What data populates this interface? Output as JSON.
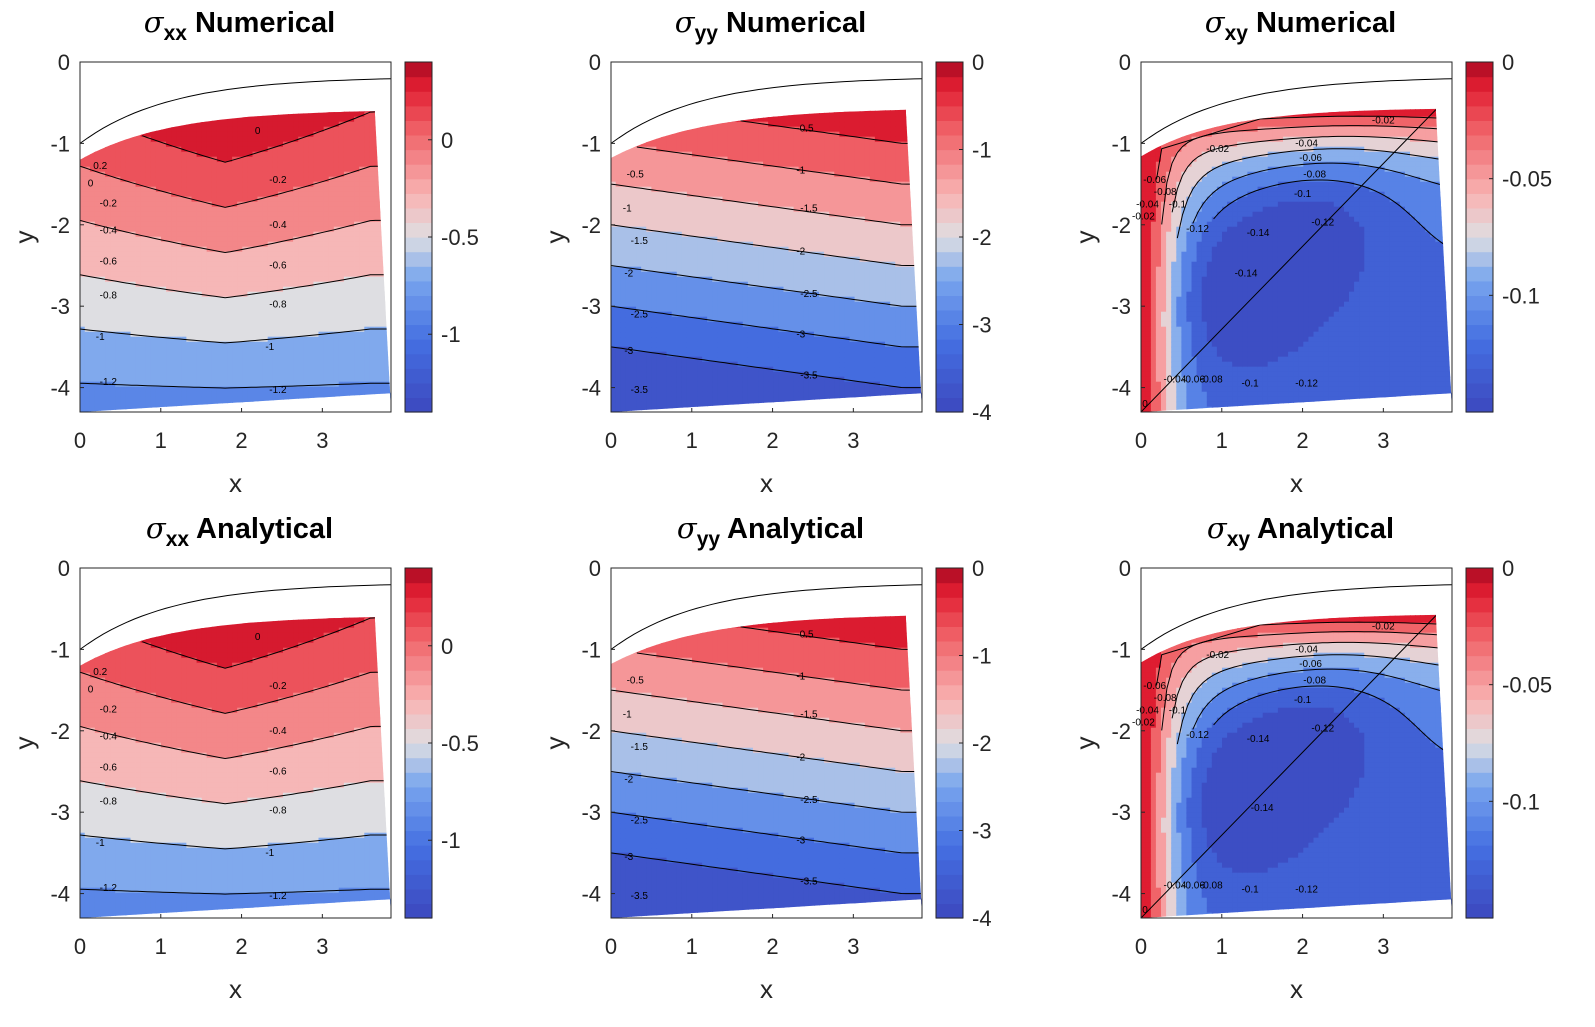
{
  "figure": {
    "type": "contour-grid",
    "rows": 2,
    "cols": 3
  },
  "chart_data": [
    {
      "type": "contour",
      "component": "xx",
      "method": "Numerical",
      "title": "σxx Numerical",
      "title_symbol": "σ",
      "title_sub": "xx",
      "title_suffix": " Numerical",
      "xlabel": "x",
      "ylabel": "y",
      "xlim": [
        0,
        3.85
      ],
      "ylim": [
        -4.3,
        0
      ],
      "xticks": [
        "0",
        "1",
        "2",
        "3"
      ],
      "yticks": [
        "0",
        "-1",
        "-2",
        "-3",
        "-4"
      ],
      "clim": [
        -1.4,
        0.4
      ],
      "colorbar_ticks": [
        {
          "value": 0,
          "label": "0"
        },
        {
          "value": -0.5,
          "label": "-0.5"
        },
        {
          "value": -1,
          "label": "-1"
        }
      ],
      "levels": [
        0.2,
        0,
        -0.2,
        -0.4,
        -0.6,
        -0.8,
        -1,
        -1.2
      ],
      "level_labels": [
        "0.2",
        "0",
        "-0.2",
        "-0.4",
        "-0.6",
        "-0.8",
        "-1",
        "-1.2"
      ],
      "contour_labels": [
        {
          "level": 0.2,
          "text": "0.2",
          "x": 0.25,
          "y": -1.28
        },
        {
          "level": 0,
          "text": "0",
          "x": 0.13,
          "y": -1.49
        },
        {
          "level": 0,
          "text": "0",
          "x": 2.2,
          "y": -0.85
        },
        {
          "level": -0.2,
          "text": "-0.2",
          "x": 0.35,
          "y": -1.74
        },
        {
          "level": -0.2,
          "text": "-0.2",
          "x": 2.45,
          "y": -1.45
        },
        {
          "level": -0.4,
          "text": "-0.4",
          "x": 0.35,
          "y": -2.07
        },
        {
          "level": -0.4,
          "text": "-0.4",
          "x": 2.45,
          "y": -2.0
        },
        {
          "level": -0.6,
          "text": "-0.6",
          "x": 0.35,
          "y": -2.45
        },
        {
          "level": -0.6,
          "text": "-0.6",
          "x": 2.45,
          "y": -2.5
        },
        {
          "level": -0.8,
          "text": "-0.8",
          "x": 0.35,
          "y": -2.87
        },
        {
          "level": -0.8,
          "text": "-0.8",
          "x": 2.45,
          "y": -2.98
        },
        {
          "level": -1,
          "text": "-1",
          "x": 0.25,
          "y": -3.38
        },
        {
          "level": -1,
          "text": "-1",
          "x": 2.35,
          "y": -3.5
        },
        {
          "level": -1.2,
          "text": "-1.2",
          "x": 0.35,
          "y": -3.93
        },
        {
          "level": -1.2,
          "text": "-1.2",
          "x": 2.45,
          "y": -4.03
        }
      ]
    },
    {
      "type": "contour",
      "component": "yy",
      "method": "Numerical",
      "title": "σyy Numerical",
      "title_symbol": "σ",
      "title_sub": "yy",
      "title_suffix": " Numerical",
      "xlabel": "x",
      "ylabel": "y",
      "xlim": [
        0,
        3.85
      ],
      "ylim": [
        -4.3,
        0
      ],
      "xticks": [
        "0",
        "1",
        "2",
        "3"
      ],
      "yticks": [
        "0",
        "-1",
        "-2",
        "-3",
        "-4"
      ],
      "clim": [
        -4,
        0
      ],
      "colorbar_ticks": [
        {
          "value": 0,
          "label": "0"
        },
        {
          "value": -1,
          "label": "-1"
        },
        {
          "value": -2,
          "label": "-2"
        },
        {
          "value": -3,
          "label": "-3"
        },
        {
          "value": -4,
          "label": "-4"
        }
      ],
      "levels": [
        -0.5,
        -1,
        -1.5,
        -2,
        -2.5,
        -3,
        -3.5
      ],
      "level_labels": [
        "-0.5",
        "-1",
        "-1.5",
        "-2",
        "-2.5",
        "-3",
        "-3.5"
      ],
      "contour_labels": [
        {
          "level": -0.5,
          "text": "-0.5",
          "x": 0.3,
          "y": -1.38
        },
        {
          "level": -0.5,
          "text": "-0.5",
          "x": 2.4,
          "y": -0.82
        },
        {
          "level": -1,
          "text": "-1",
          "x": 0.2,
          "y": -1.8
        },
        {
          "level": -1,
          "text": "-1",
          "x": 2.35,
          "y": -1.33
        },
        {
          "level": -1.5,
          "text": "-1.5",
          "x": 0.35,
          "y": -2.2
        },
        {
          "level": -1.5,
          "text": "-1.5",
          "x": 2.45,
          "y": -1.8
        },
        {
          "level": -2,
          "text": "-2",
          "x": 0.22,
          "y": -2.6
        },
        {
          "level": -2,
          "text": "-2",
          "x": 2.35,
          "y": -2.33
        },
        {
          "level": -2.5,
          "text": "-2.5",
          "x": 0.35,
          "y": -3.1
        },
        {
          "level": -2.5,
          "text": "-2.5",
          "x": 2.45,
          "y": -2.85
        },
        {
          "level": -3,
          "text": "-3",
          "x": 0.22,
          "y": -3.55
        },
        {
          "level": -3,
          "text": "-3",
          "x": 2.35,
          "y": -3.35
        },
        {
          "level": -3.5,
          "text": "-3.5",
          "x": 0.35,
          "y": -4.03
        },
        {
          "level": -3.5,
          "text": "-3.5",
          "x": 2.45,
          "y": -3.85
        }
      ]
    },
    {
      "type": "contour",
      "component": "xy",
      "method": "Numerical",
      "title": "σxy Numerical",
      "title_symbol": "σ",
      "title_sub": "xy",
      "title_suffix": " Numerical",
      "xlabel": "x",
      "ylabel": "y",
      "xlim": [
        0,
        3.85
      ],
      "ylim": [
        -4.3,
        0
      ],
      "xticks": [
        "0",
        "1",
        "2",
        "3"
      ],
      "yticks": [
        "0",
        "-1",
        "-2",
        "-3",
        "-4"
      ],
      "clim": [
        -0.15,
        0
      ],
      "colorbar_ticks": [
        {
          "value": 0,
          "label": "0"
        },
        {
          "value": -0.05,
          "label": "-0.05"
        },
        {
          "value": -0.1,
          "label": "-0.1"
        }
      ],
      "levels": [
        0,
        -0.02,
        -0.04,
        -0.06,
        -0.08,
        -0.1,
        -0.12,
        -0.14
      ],
      "level_labels": [
        "0",
        "-0.02",
        "-0.04",
        "-0.06",
        "-0.08",
        "-0.1",
        "-0.12",
        "-0.14"
      ],
      "contour_labels": [
        {
          "level": -0.02,
          "text": "-0.02",
          "x": 3.0,
          "y": -0.72
        },
        {
          "level": -0.02,
          "text": "-0.02",
          "x": 0.95,
          "y": -1.07
        },
        {
          "level": -0.04,
          "text": "-0.04",
          "x": 2.05,
          "y": -1.0
        },
        {
          "level": -0.06,
          "text": "-0.06",
          "x": 2.1,
          "y": -1.18
        },
        {
          "level": -0.08,
          "text": "-0.08",
          "x": 2.15,
          "y": -1.38
        },
        {
          "level": -0.1,
          "text": "-0.1",
          "x": 2.0,
          "y": -1.62
        },
        {
          "level": -0.12,
          "text": "-0.12",
          "x": 2.25,
          "y": -1.97
        },
        {
          "level": -0.14,
          "text": "-0.14",
          "x": 1.45,
          "y": -2.1
        },
        {
          "level": -0.14,
          "text": "-0.14",
          "x": 1.3,
          "y": -2.6
        },
        {
          "level": -0.12,
          "text": "-0.12",
          "x": 0.7,
          "y": -2.05
        },
        {
          "level": -0.1,
          "text": "-0.1",
          "x": 0.45,
          "y": -1.75
        },
        {
          "level": -0.08,
          "text": "-0.08",
          "x": 0.3,
          "y": -1.6
        },
        {
          "level": -0.06,
          "text": "-0.06",
          "x": 0.17,
          "y": -1.45
        },
        {
          "level": -0.04,
          "text": "-0.04",
          "x": 0.08,
          "y": -1.75
        },
        {
          "level": -0.02,
          "text": "-0.02",
          "x": 0.03,
          "y": -1.9
        },
        {
          "level": -0.04,
          "text": "-0.04",
          "x": 0.42,
          "y": -3.9
        },
        {
          "level": -0.06,
          "text": "-0.06",
          "x": 0.65,
          "y": -3.9
        },
        {
          "level": -0.08,
          "text": "-0.08",
          "x": 0.87,
          "y": -3.9
        },
        {
          "level": -0.1,
          "text": "-0.1",
          "x": 1.35,
          "y": -3.95
        },
        {
          "level": -0.12,
          "text": "-0.12",
          "x": 2.05,
          "y": -3.95
        },
        {
          "level": 0,
          "text": "0",
          "x": 0.05,
          "y": -4.2
        }
      ]
    },
    {
      "type": "contour",
      "component": "xx",
      "method": "Analytical",
      "title": "σxx Analytical",
      "title_symbol": "σ",
      "title_sub": "xx",
      "title_suffix": " Analytical",
      "xlabel": "x",
      "ylabel": "y",
      "xlim": [
        0,
        3.85
      ],
      "ylim": [
        -4.3,
        0
      ],
      "xticks": [
        "0",
        "1",
        "2",
        "3"
      ],
      "yticks": [
        "0",
        "-1",
        "-2",
        "-3",
        "-4"
      ],
      "clim": [
        -1.4,
        0.4
      ],
      "colorbar_ticks": [
        {
          "value": 0,
          "label": "0"
        },
        {
          "value": -0.5,
          "label": "-0.5"
        },
        {
          "value": -1,
          "label": "-1"
        }
      ],
      "levels": [
        0.2,
        0,
        -0.2,
        -0.4,
        -0.6,
        -0.8,
        -1,
        -1.2
      ],
      "level_labels": [
        "0.2",
        "0",
        "-0.2",
        "-0.4",
        "-0.6",
        "-0.8",
        "-1",
        "-1.2"
      ],
      "contour_labels": [
        {
          "level": 0.2,
          "text": "0.2",
          "x": 0.25,
          "y": -1.28
        },
        {
          "level": 0,
          "text": "0",
          "x": 0.13,
          "y": -1.49
        },
        {
          "level": 0,
          "text": "0",
          "x": 2.2,
          "y": -0.85
        },
        {
          "level": -0.2,
          "text": "-0.2",
          "x": 0.35,
          "y": -1.74
        },
        {
          "level": -0.2,
          "text": "-0.2",
          "x": 2.45,
          "y": -1.45
        },
        {
          "level": -0.4,
          "text": "-0.4",
          "x": 0.35,
          "y": -2.07
        },
        {
          "level": -0.4,
          "text": "-0.4",
          "x": 2.45,
          "y": -2.0
        },
        {
          "level": -0.6,
          "text": "-0.6",
          "x": 0.35,
          "y": -2.45
        },
        {
          "level": -0.6,
          "text": "-0.6",
          "x": 2.45,
          "y": -2.5
        },
        {
          "level": -0.8,
          "text": "-0.8",
          "x": 0.35,
          "y": -2.87
        },
        {
          "level": -0.8,
          "text": "-0.8",
          "x": 2.45,
          "y": -2.98
        },
        {
          "level": -1,
          "text": "-1",
          "x": 0.25,
          "y": -3.38
        },
        {
          "level": -1,
          "text": "-1",
          "x": 2.35,
          "y": -3.5
        },
        {
          "level": -1.2,
          "text": "-1.2",
          "x": 0.35,
          "y": -3.93
        },
        {
          "level": -1.2,
          "text": "-1.2",
          "x": 2.45,
          "y": -4.03
        }
      ]
    },
    {
      "type": "contour",
      "component": "yy",
      "method": "Analytical",
      "title": "σyy Analytical",
      "title_symbol": "σ",
      "title_sub": "yy",
      "title_suffix": " Analytical",
      "xlabel": "x",
      "ylabel": "y",
      "xlim": [
        0,
        3.85
      ],
      "ylim": [
        -4.3,
        0
      ],
      "xticks": [
        "0",
        "1",
        "2",
        "3"
      ],
      "yticks": [
        "0",
        "-1",
        "-2",
        "-3",
        "-4"
      ],
      "clim": [
        -4,
        0
      ],
      "colorbar_ticks": [
        {
          "value": 0,
          "label": "0"
        },
        {
          "value": -1,
          "label": "-1"
        },
        {
          "value": -2,
          "label": "-2"
        },
        {
          "value": -3,
          "label": "-3"
        },
        {
          "value": -4,
          "label": "-4"
        }
      ],
      "levels": [
        -0.5,
        -1,
        -1.5,
        -2,
        -2.5,
        -3,
        -3.5
      ],
      "level_labels": [
        "-0.5",
        "-1",
        "-1.5",
        "-2",
        "-2.5",
        "-3",
        "-3.5"
      ],
      "contour_labels": [
        {
          "level": -0.5,
          "text": "-0.5",
          "x": 0.3,
          "y": -1.38
        },
        {
          "level": -0.5,
          "text": "-0.5",
          "x": 2.4,
          "y": -0.82
        },
        {
          "level": -1,
          "text": "-1",
          "x": 0.2,
          "y": -1.8
        },
        {
          "level": -1,
          "text": "-1",
          "x": 2.35,
          "y": -1.33
        },
        {
          "level": -1.5,
          "text": "-1.5",
          "x": 0.35,
          "y": -2.2
        },
        {
          "level": -1.5,
          "text": "-1.5",
          "x": 2.45,
          "y": -1.8
        },
        {
          "level": -2,
          "text": "-2",
          "x": 0.22,
          "y": -2.6
        },
        {
          "level": -2,
          "text": "-2",
          "x": 2.35,
          "y": -2.33
        },
        {
          "level": -2.5,
          "text": "-2.5",
          "x": 0.35,
          "y": -3.1
        },
        {
          "level": -2.5,
          "text": "-2.5",
          "x": 2.45,
          "y": -2.85
        },
        {
          "level": -3,
          "text": "-3",
          "x": 0.22,
          "y": -3.55
        },
        {
          "level": -3,
          "text": "-3",
          "x": 2.35,
          "y": -3.35
        },
        {
          "level": -3.5,
          "text": "-3.5",
          "x": 0.35,
          "y": -4.03
        },
        {
          "level": -3.5,
          "text": "-3.5",
          "x": 2.45,
          "y": -3.85
        }
      ]
    },
    {
      "type": "contour",
      "component": "xy",
      "method": "Analytical",
      "title": "σxy Analytical",
      "title_symbol": "σ",
      "title_sub": "xy",
      "title_suffix": " Analytical",
      "xlabel": "x",
      "ylabel": "y",
      "xlim": [
        0,
        3.85
      ],
      "ylim": [
        -4.3,
        0
      ],
      "xticks": [
        "0",
        "1",
        "2",
        "3"
      ],
      "yticks": [
        "0",
        "-1",
        "-2",
        "-3",
        "-4"
      ],
      "clim": [
        -0.15,
        0
      ],
      "colorbar_ticks": [
        {
          "value": 0,
          "label": "0"
        },
        {
          "value": -0.05,
          "label": "-0.05"
        },
        {
          "value": -0.1,
          "label": "-0.1"
        }
      ],
      "levels": [
        0,
        -0.02,
        -0.04,
        -0.06,
        -0.08,
        -0.1,
        -0.12,
        -0.14
      ],
      "level_labels": [
        "0",
        "-0.02",
        "-0.04",
        "-0.06",
        "-0.08",
        "-0.1",
        "-0.12",
        "-0.14"
      ],
      "contour_labels": [
        {
          "level": -0.02,
          "text": "-0.02",
          "x": 3.0,
          "y": -0.72
        },
        {
          "level": -0.02,
          "text": "-0.02",
          "x": 0.95,
          "y": -1.07
        },
        {
          "level": -0.04,
          "text": "-0.04",
          "x": 2.05,
          "y": -1.0
        },
        {
          "level": -0.06,
          "text": "-0.06",
          "x": 2.1,
          "y": -1.18
        },
        {
          "level": -0.08,
          "text": "-0.08",
          "x": 2.15,
          "y": -1.38
        },
        {
          "level": -0.1,
          "text": "-0.1",
          "x": 2.0,
          "y": -1.62
        },
        {
          "level": -0.12,
          "text": "-0.12",
          "x": 2.25,
          "y": -1.97
        },
        {
          "level": -0.14,
          "text": "-0.14",
          "x": 1.45,
          "y": -2.1
        },
        {
          "level": -0.14,
          "text": "-0.14",
          "x": 1.5,
          "y": -2.95
        },
        {
          "level": -0.12,
          "text": "-0.12",
          "x": 0.7,
          "y": -2.05
        },
        {
          "level": -0.1,
          "text": "-0.1",
          "x": 0.45,
          "y": -1.75
        },
        {
          "level": -0.08,
          "text": "-0.08",
          "x": 0.3,
          "y": -1.6
        },
        {
          "level": -0.06,
          "text": "-0.06",
          "x": 0.17,
          "y": -1.45
        },
        {
          "level": -0.04,
          "text": "-0.04",
          "x": 0.08,
          "y": -1.75
        },
        {
          "level": -0.02,
          "text": "-0.02",
          "x": 0.03,
          "y": -1.9
        },
        {
          "level": -0.04,
          "text": "-0.04",
          "x": 0.42,
          "y": -3.9
        },
        {
          "level": -0.06,
          "text": "-0.06",
          "x": 0.65,
          "y": -3.9
        },
        {
          "level": -0.08,
          "text": "-0.08",
          "x": 0.87,
          "y": -3.9
        },
        {
          "level": -0.1,
          "text": "-0.1",
          "x": 1.35,
          "y": -3.95
        },
        {
          "level": -0.12,
          "text": "-0.12",
          "x": 2.05,
          "y": -3.95
        },
        {
          "level": 0,
          "text": "0",
          "x": 0.05,
          "y": -4.2
        }
      ]
    }
  ]
}
